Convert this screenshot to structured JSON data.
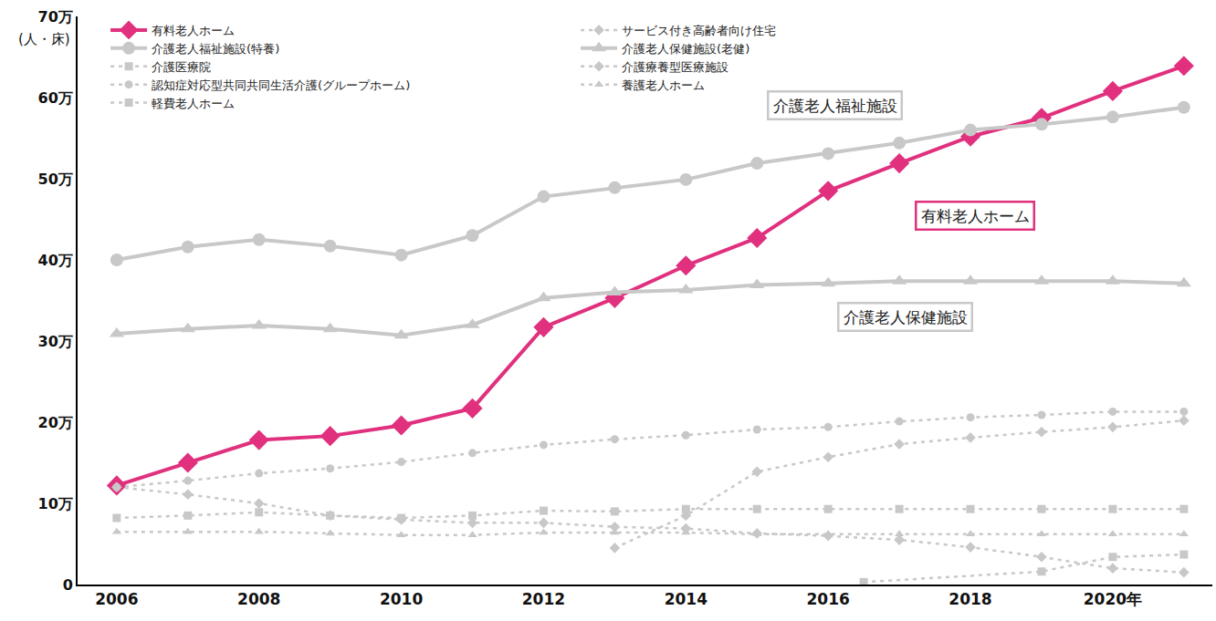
{
  "chart_data": {
    "type": "line",
    "y_label": "(人・床)",
    "x": [
      2006,
      2007,
      2008,
      2009,
      2010,
      2011,
      2012,
      2013,
      2014,
      2015,
      2016,
      2017,
      2018,
      2019,
      2020,
      2021
    ],
    "xlim": [
      2005.45,
      2021.4
    ],
    "xticks": [
      2006,
      2008,
      2010,
      2012,
      2014,
      2016,
      2018,
      {
        "value": 2020,
        "label": "2020年"
      }
    ],
    "ylim": [
      0,
      700000
    ],
    "yticks": [
      {
        "value": 0,
        "label": "0"
      },
      {
        "value": 100000,
        "label": "10万"
      },
      {
        "value": 200000,
        "label": "20万"
      },
      {
        "value": 300000,
        "label": "30万"
      },
      {
        "value": 400000,
        "label": "40万"
      },
      {
        "value": 500000,
        "label": "50万"
      },
      {
        "value": 600000,
        "label": "60万"
      },
      {
        "value": 700000,
        "label": "70万"
      }
    ],
    "grid": false,
    "legend": "top left",
    "series": [
      {
        "name": "有料老人ホーム",
        "color": "#e0307e",
        "marker": "diamond",
        "line_style": "solid",
        "values": [
          122000,
          150000,
          178000,
          183000,
          196000,
          217000,
          317000,
          353000,
          393000,
          427000,
          485000,
          519000,
          552000,
          575000,
          608000,
          639000
        ]
      },
      {
        "name": "サービス付き高齢者向け住宅",
        "color": "#c8c8c8",
        "marker": "diamond",
        "line_style": "dashed",
        "values": [
          null,
          null,
          null,
          null,
          null,
          null,
          null,
          45000,
          85000,
          139000,
          157000,
          173000,
          181000,
          188000,
          194000,
          202000
        ]
      },
      {
        "name": "介護老人福祉施設(特養)",
        "color": "#c8c8c8",
        "marker": "circle",
        "line_style": "solid",
        "values": [
          400000,
          416000,
          425000,
          417000,
          406000,
          430000,
          478000,
          489000,
          499000,
          519000,
          531000,
          544000,
          560000,
          567000,
          576000,
          588000
        ]
      },
      {
        "name": "介護老人保健施設(老健)",
        "color": "#c8c8c8",
        "marker": "triangle-up",
        "line_style": "solid",
        "values": [
          309000,
          315000,
          319000,
          315000,
          307000,
          320000,
          353000,
          360000,
          363000,
          369000,
          371000,
          374000,
          374000,
          374000,
          374000,
          371000
        ]
      },
      {
        "name": "介護医療院",
        "color": "#c8c8c8",
        "marker": "square",
        "line_style": "dashed",
        "x": [
          2016.5,
          2019,
          2020,
          2021
        ],
        "values": [
          3000,
          16000,
          34000,
          37000
        ]
      },
      {
        "name": "介護療養型医療施設",
        "color": "#c8c8c8",
        "marker": "diamond",
        "line_style": "dashed",
        "values": [
          120000,
          111000,
          100000,
          85000,
          80000,
          76000,
          76000,
          71000,
          69000,
          63000,
          60000,
          55000,
          46000,
          34000,
          20000,
          15000
        ]
      },
      {
        "name": "認知症対応型共同共同生活介護(グループホーム)",
        "color": "#c8c8c8",
        "marker": "circle",
        "line_style": "dashed",
        "values": [
          120000,
          128000,
          137000,
          143000,
          151000,
          162000,
          172000,
          179000,
          184000,
          191000,
          194000,
          201000,
          206000,
          209000,
          213000,
          213000
        ]
      },
      {
        "name": "養護老人ホーム",
        "color": "#c8c8c8",
        "marker": "triangle-up",
        "line_style": "dashed",
        "values": [
          65000,
          65000,
          65000,
          63000,
          61000,
          61000,
          64000,
          64000,
          64000,
          62000,
          62000,
          62000,
          62000,
          62000,
          62000,
          62000
        ]
      },
      {
        "name": "軽費老人ホーム",
        "color": "#c8c8c8",
        "marker": "square",
        "line_style": "dashed",
        "values": [
          82000,
          85000,
          89000,
          85000,
          82000,
          85000,
          91000,
          90000,
          93000,
          93000,
          93000,
          93000,
          93000,
          93000,
          93000,
          93000
        ]
      }
    ],
    "annotations": [
      {
        "text": "介護老人福祉施設",
        "x": 2016.1,
        "y": 591000,
        "color": "#c8c8c8"
      },
      {
        "text": "有料老人ホーム",
        "x": 2018.06,
        "y": 455000,
        "color": "#e0307e"
      },
      {
        "text": "介護老人保健施設",
        "x": 2017.08,
        "y": 330000,
        "color": "#c8c8c8"
      }
    ]
  }
}
